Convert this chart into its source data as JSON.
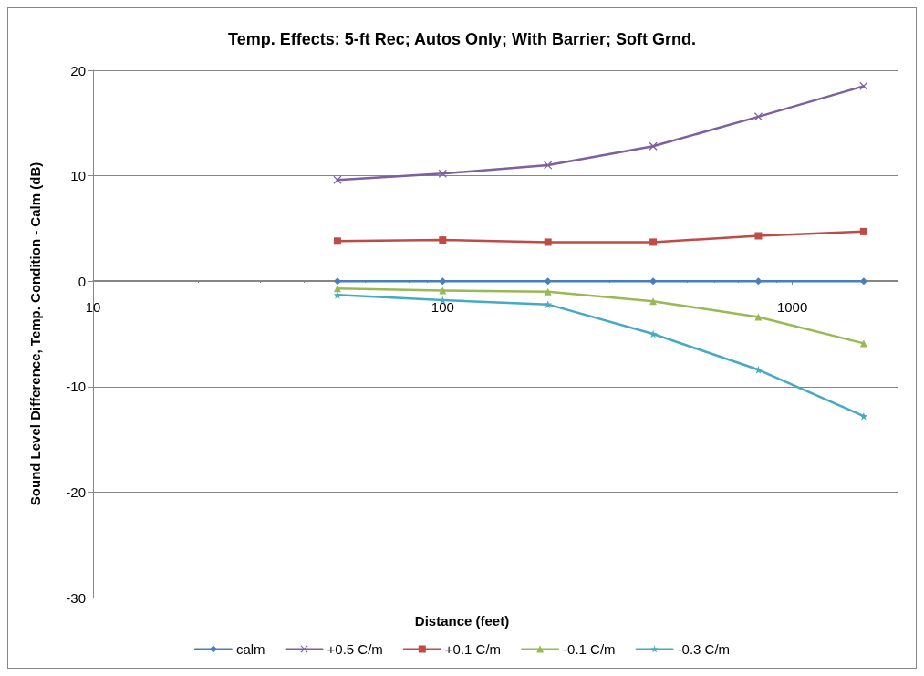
{
  "chart_data": {
    "type": "line",
    "title": "Temp. Effects: 5-ft Rec; Autos Only; With Barrier; Soft Grnd.",
    "xlabel": "Distance (feet)",
    "ylabel": "Sound Level Difference, Temp. Condition - Calm (dB)",
    "x": [
      50,
      100,
      200,
      400,
      800,
      1600
    ],
    "series": [
      {
        "name": "calm",
        "color": "#4a7ebb",
        "marker": "diamond",
        "values": [
          0,
          0,
          0,
          0,
          0,
          0
        ]
      },
      {
        "name": "+0.5 C/m",
        "color": "#7d60a0",
        "marker": "cross",
        "values": [
          9.6,
          10.2,
          11.0,
          12.8,
          15.6,
          18.5
        ]
      },
      {
        "name": "+0.1 C/m",
        "color": "#be4b48",
        "marker": "square",
        "values": [
          3.8,
          3.9,
          3.7,
          3.7,
          4.3,
          4.7
        ]
      },
      {
        "name": "-0.1 C/m",
        "color": "#98b954",
        "marker": "triangle",
        "values": [
          -0.7,
          -0.9,
          -1.0,
          -1.9,
          -3.4,
          -5.9
        ]
      },
      {
        "name": "-0.3 C/m",
        "color": "#46aac5",
        "marker": "star",
        "values": [
          -1.3,
          -1.8,
          -2.2,
          -5.0,
          -8.4,
          -12.8
        ]
      }
    ],
    "log": "x",
    "xlim": [
      10,
      2000
    ],
    "xticks": [
      10,
      100,
      1000
    ],
    "ylim": [
      -30,
      20
    ],
    "yticks": [
      -30,
      -20,
      -10,
      0,
      10,
      20
    ],
    "grid": "y",
    "legend": "bottom",
    "line_style": "solid"
  }
}
